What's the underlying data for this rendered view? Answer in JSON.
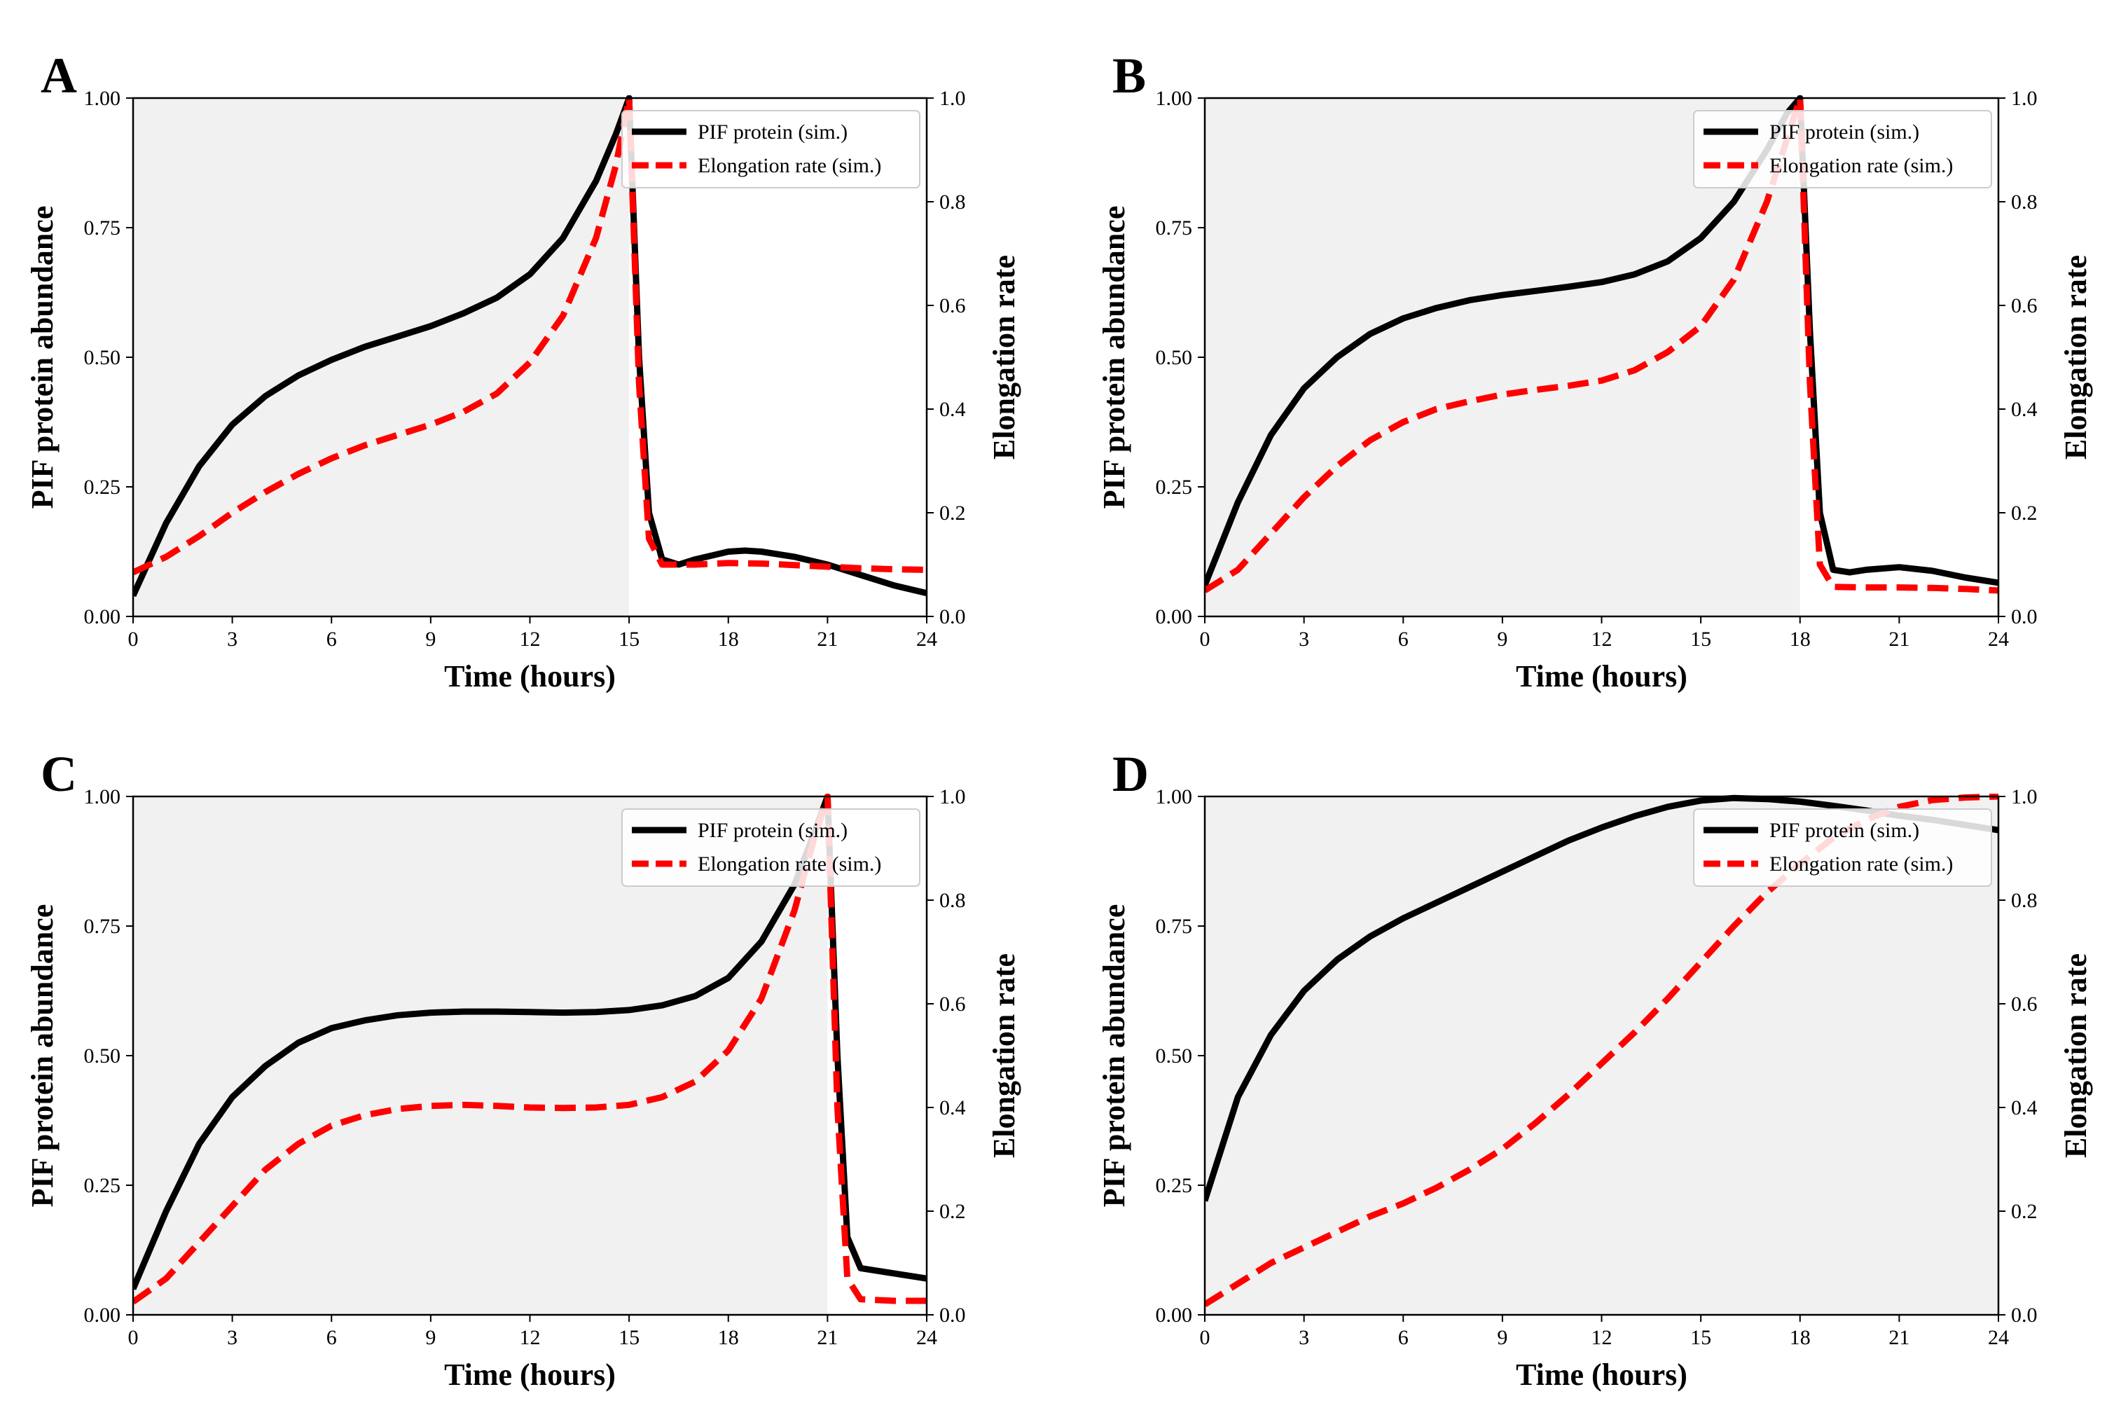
{
  "chart_data": [
    {
      "type": "line",
      "panel_label": "A",
      "xlabel": "Time (hours)",
      "ylabel": "PIF protein abundance",
      "ylabel_right": "Elongation rate",
      "xlim": [
        0,
        24
      ],
      "ylim": [
        0,
        1
      ],
      "ylim_right": [
        0,
        1
      ],
      "xticks": [
        "0",
        "3",
        "6",
        "9",
        "12",
        "15",
        "18",
        "21",
        "24"
      ],
      "yticks": [
        "0.00",
        "0.25",
        "0.50",
        "0.75",
        "1.00"
      ],
      "yticks_right": [
        "0.0",
        "0.2",
        "0.4",
        "0.6",
        "0.8",
        "1.0"
      ],
      "dark_period": [
        0,
        15
      ],
      "legend_position": "top-right",
      "series": [
        {
          "name": "PIF protein (sim.)",
          "axis": "left",
          "style": "solid",
          "color": "#000000",
          "x": [
            0,
            1,
            2,
            3,
            4,
            5,
            6,
            7,
            8,
            9,
            10,
            11,
            12,
            13,
            14,
            14.6,
            15,
            15.3,
            15.6,
            16,
            16.5,
            17,
            18,
            18.5,
            19,
            20,
            21,
            22,
            23,
            24
          ],
          "y": [
            0.04,
            0.18,
            0.29,
            0.37,
            0.425,
            0.465,
            0.495,
            0.52,
            0.54,
            0.56,
            0.585,
            0.615,
            0.66,
            0.73,
            0.84,
            0.93,
            1.0,
            0.5,
            0.2,
            0.11,
            0.1,
            0.11,
            0.125,
            0.127,
            0.125,
            0.115,
            0.1,
            0.08,
            0.06,
            0.045
          ]
        },
        {
          "name": "Elongation rate (sim.)",
          "axis": "right",
          "style": "dashed",
          "color": "#ff0000",
          "x": [
            0,
            1,
            2,
            3,
            4,
            5,
            6,
            7,
            8,
            9,
            10,
            11,
            12,
            13,
            14,
            14.6,
            15,
            15.3,
            15.6,
            16,
            17,
            18,
            19,
            20,
            21,
            22,
            23,
            24
          ],
          "y": [
            0.085,
            0.115,
            0.155,
            0.2,
            0.24,
            0.275,
            0.305,
            0.33,
            0.35,
            0.37,
            0.395,
            0.43,
            0.49,
            0.58,
            0.73,
            0.87,
            1.0,
            0.45,
            0.15,
            0.1,
            0.1,
            0.103,
            0.102,
            0.099,
            0.096,
            0.093,
            0.091,
            0.09
          ]
        }
      ]
    },
    {
      "type": "line",
      "panel_label": "B",
      "xlabel": "Time (hours)",
      "ylabel": "PIF protein abundance",
      "ylabel_right": "Elongation rate",
      "xlim": [
        0,
        24
      ],
      "ylim": [
        0,
        1
      ],
      "ylim_right": [
        0,
        1
      ],
      "xticks": [
        "0",
        "3",
        "6",
        "9",
        "12",
        "15",
        "18",
        "21",
        "24"
      ],
      "yticks": [
        "0.00",
        "0.25",
        "0.50",
        "0.75",
        "1.00"
      ],
      "yticks_right": [
        "0.0",
        "0.2",
        "0.4",
        "0.6",
        "0.8",
        "1.0"
      ],
      "dark_period": [
        0,
        18
      ],
      "legend_position": "top-right",
      "series": [
        {
          "name": "PIF protein (sim.)",
          "axis": "left",
          "style": "solid",
          "color": "#000000",
          "x": [
            0,
            1,
            2,
            3,
            4,
            5,
            6,
            7,
            8,
            9,
            10,
            11,
            12,
            13,
            14,
            15,
            16,
            17,
            17.6,
            18,
            18.3,
            18.6,
            19,
            19.5,
            20,
            21,
            22,
            23,
            24
          ],
          "y": [
            0.06,
            0.22,
            0.35,
            0.44,
            0.5,
            0.545,
            0.575,
            0.595,
            0.61,
            0.62,
            0.628,
            0.636,
            0.645,
            0.66,
            0.685,
            0.73,
            0.8,
            0.9,
            0.97,
            1.0,
            0.55,
            0.2,
            0.09,
            0.085,
            0.09,
            0.095,
            0.088,
            0.075,
            0.065
          ]
        },
        {
          "name": "Elongation rate (sim.)",
          "axis": "right",
          "style": "dashed",
          "color": "#ff0000",
          "x": [
            0,
            1,
            2,
            3,
            4,
            5,
            6,
            7,
            8,
            9,
            10,
            11,
            12,
            13,
            14,
            15,
            16,
            17,
            17.6,
            18,
            18.3,
            18.6,
            19,
            20,
            21,
            22,
            23,
            24
          ],
          "y": [
            0.05,
            0.09,
            0.16,
            0.23,
            0.29,
            0.34,
            0.375,
            0.4,
            0.415,
            0.428,
            0.437,
            0.445,
            0.455,
            0.475,
            0.51,
            0.56,
            0.65,
            0.8,
            0.92,
            1.0,
            0.45,
            0.1,
            0.057,
            0.056,
            0.056,
            0.055,
            0.053,
            0.05
          ]
        }
      ]
    },
    {
      "type": "line",
      "panel_label": "C",
      "xlabel": "Time (hours)",
      "ylabel": "PIF protein abundance",
      "ylabel_right": "Elongation rate",
      "xlim": [
        0,
        24
      ],
      "ylim": [
        0,
        1
      ],
      "ylim_right": [
        0,
        1
      ],
      "xticks": [
        "0",
        "3",
        "6",
        "9",
        "12",
        "15",
        "18",
        "21",
        "24"
      ],
      "yticks": [
        "0.00",
        "0.25",
        "0.50",
        "0.75",
        "1.00"
      ],
      "yticks_right": [
        "0.0",
        "0.2",
        "0.4",
        "0.6",
        "0.8",
        "1.0"
      ],
      "dark_period": [
        0,
        21
      ],
      "legend_position": "top-right",
      "series": [
        {
          "name": "PIF protein (sim.)",
          "axis": "left",
          "style": "solid",
          "color": "#000000",
          "x": [
            0,
            1,
            2,
            3,
            4,
            5,
            6,
            7,
            8,
            9,
            10,
            11,
            12,
            13,
            14,
            15,
            16,
            17,
            18,
            19,
            20,
            20.6,
            21,
            21.3,
            21.6,
            22,
            23,
            24
          ],
          "y": [
            0.05,
            0.2,
            0.33,
            0.42,
            0.48,
            0.525,
            0.553,
            0.568,
            0.578,
            0.583,
            0.585,
            0.585,
            0.584,
            0.583,
            0.584,
            0.588,
            0.597,
            0.615,
            0.65,
            0.72,
            0.83,
            0.93,
            1.0,
            0.5,
            0.15,
            0.09,
            0.08,
            0.07
          ]
        },
        {
          "name": "Elongation rate (sim.)",
          "axis": "right",
          "style": "dashed",
          "color": "#ff0000",
          "x": [
            0,
            1,
            2,
            3,
            4,
            5,
            6,
            7,
            8,
            9,
            10,
            11,
            12,
            13,
            14,
            15,
            16,
            17,
            18,
            19,
            20,
            20.6,
            21,
            21.3,
            21.6,
            22,
            23,
            24
          ],
          "y": [
            0.025,
            0.07,
            0.14,
            0.21,
            0.28,
            0.33,
            0.365,
            0.385,
            0.397,
            0.403,
            0.405,
            0.403,
            0.4,
            0.399,
            0.4,
            0.405,
            0.42,
            0.45,
            0.51,
            0.61,
            0.78,
            0.92,
            1.0,
            0.4,
            0.07,
            0.03,
            0.027,
            0.027
          ]
        }
      ]
    },
    {
      "type": "line",
      "panel_label": "D",
      "xlabel": "Time (hours)",
      "ylabel": "PIF protein abundance",
      "ylabel_right": "Elongation rate",
      "xlim": [
        0,
        24
      ],
      "ylim": [
        0,
        1
      ],
      "ylim_right": [
        0,
        1
      ],
      "xticks": [
        "0",
        "3",
        "6",
        "9",
        "12",
        "15",
        "18",
        "21",
        "24"
      ],
      "yticks": [
        "0.00",
        "0.25",
        "0.50",
        "0.75",
        "1.00"
      ],
      "yticks_right": [
        "0.0",
        "0.2",
        "0.4",
        "0.6",
        "0.8",
        "1.0"
      ],
      "dark_period": [
        0,
        24
      ],
      "legend_position": "top-right",
      "series": [
        {
          "name": "PIF protein (sim.)",
          "axis": "left",
          "style": "solid",
          "color": "#000000",
          "x": [
            0,
            1,
            2,
            3,
            4,
            5,
            6,
            7,
            8,
            9,
            10,
            11,
            12,
            13,
            14,
            15,
            16,
            17,
            18,
            19,
            20,
            21,
            22,
            23,
            24
          ],
          "y": [
            0.22,
            0.42,
            0.54,
            0.625,
            0.685,
            0.73,
            0.765,
            0.795,
            0.825,
            0.855,
            0.885,
            0.915,
            0.94,
            0.962,
            0.98,
            0.992,
            0.997,
            0.995,
            0.99,
            0.982,
            0.973,
            0.963,
            0.955,
            0.945,
            0.935
          ]
        },
        {
          "name": "Elongation rate (sim.)",
          "axis": "right",
          "style": "dashed",
          "color": "#ff0000",
          "x": [
            0,
            1,
            2,
            3,
            4,
            5,
            6,
            7,
            8,
            9,
            10,
            11,
            12,
            13,
            14,
            15,
            16,
            17,
            18,
            19,
            20,
            21,
            22,
            23,
            24
          ],
          "y": [
            0.02,
            0.06,
            0.1,
            0.13,
            0.16,
            0.19,
            0.215,
            0.245,
            0.28,
            0.32,
            0.37,
            0.425,
            0.485,
            0.545,
            0.61,
            0.68,
            0.75,
            0.815,
            0.87,
            0.92,
            0.955,
            0.98,
            0.993,
            0.998,
            1.0
          ]
        }
      ]
    }
  ]
}
